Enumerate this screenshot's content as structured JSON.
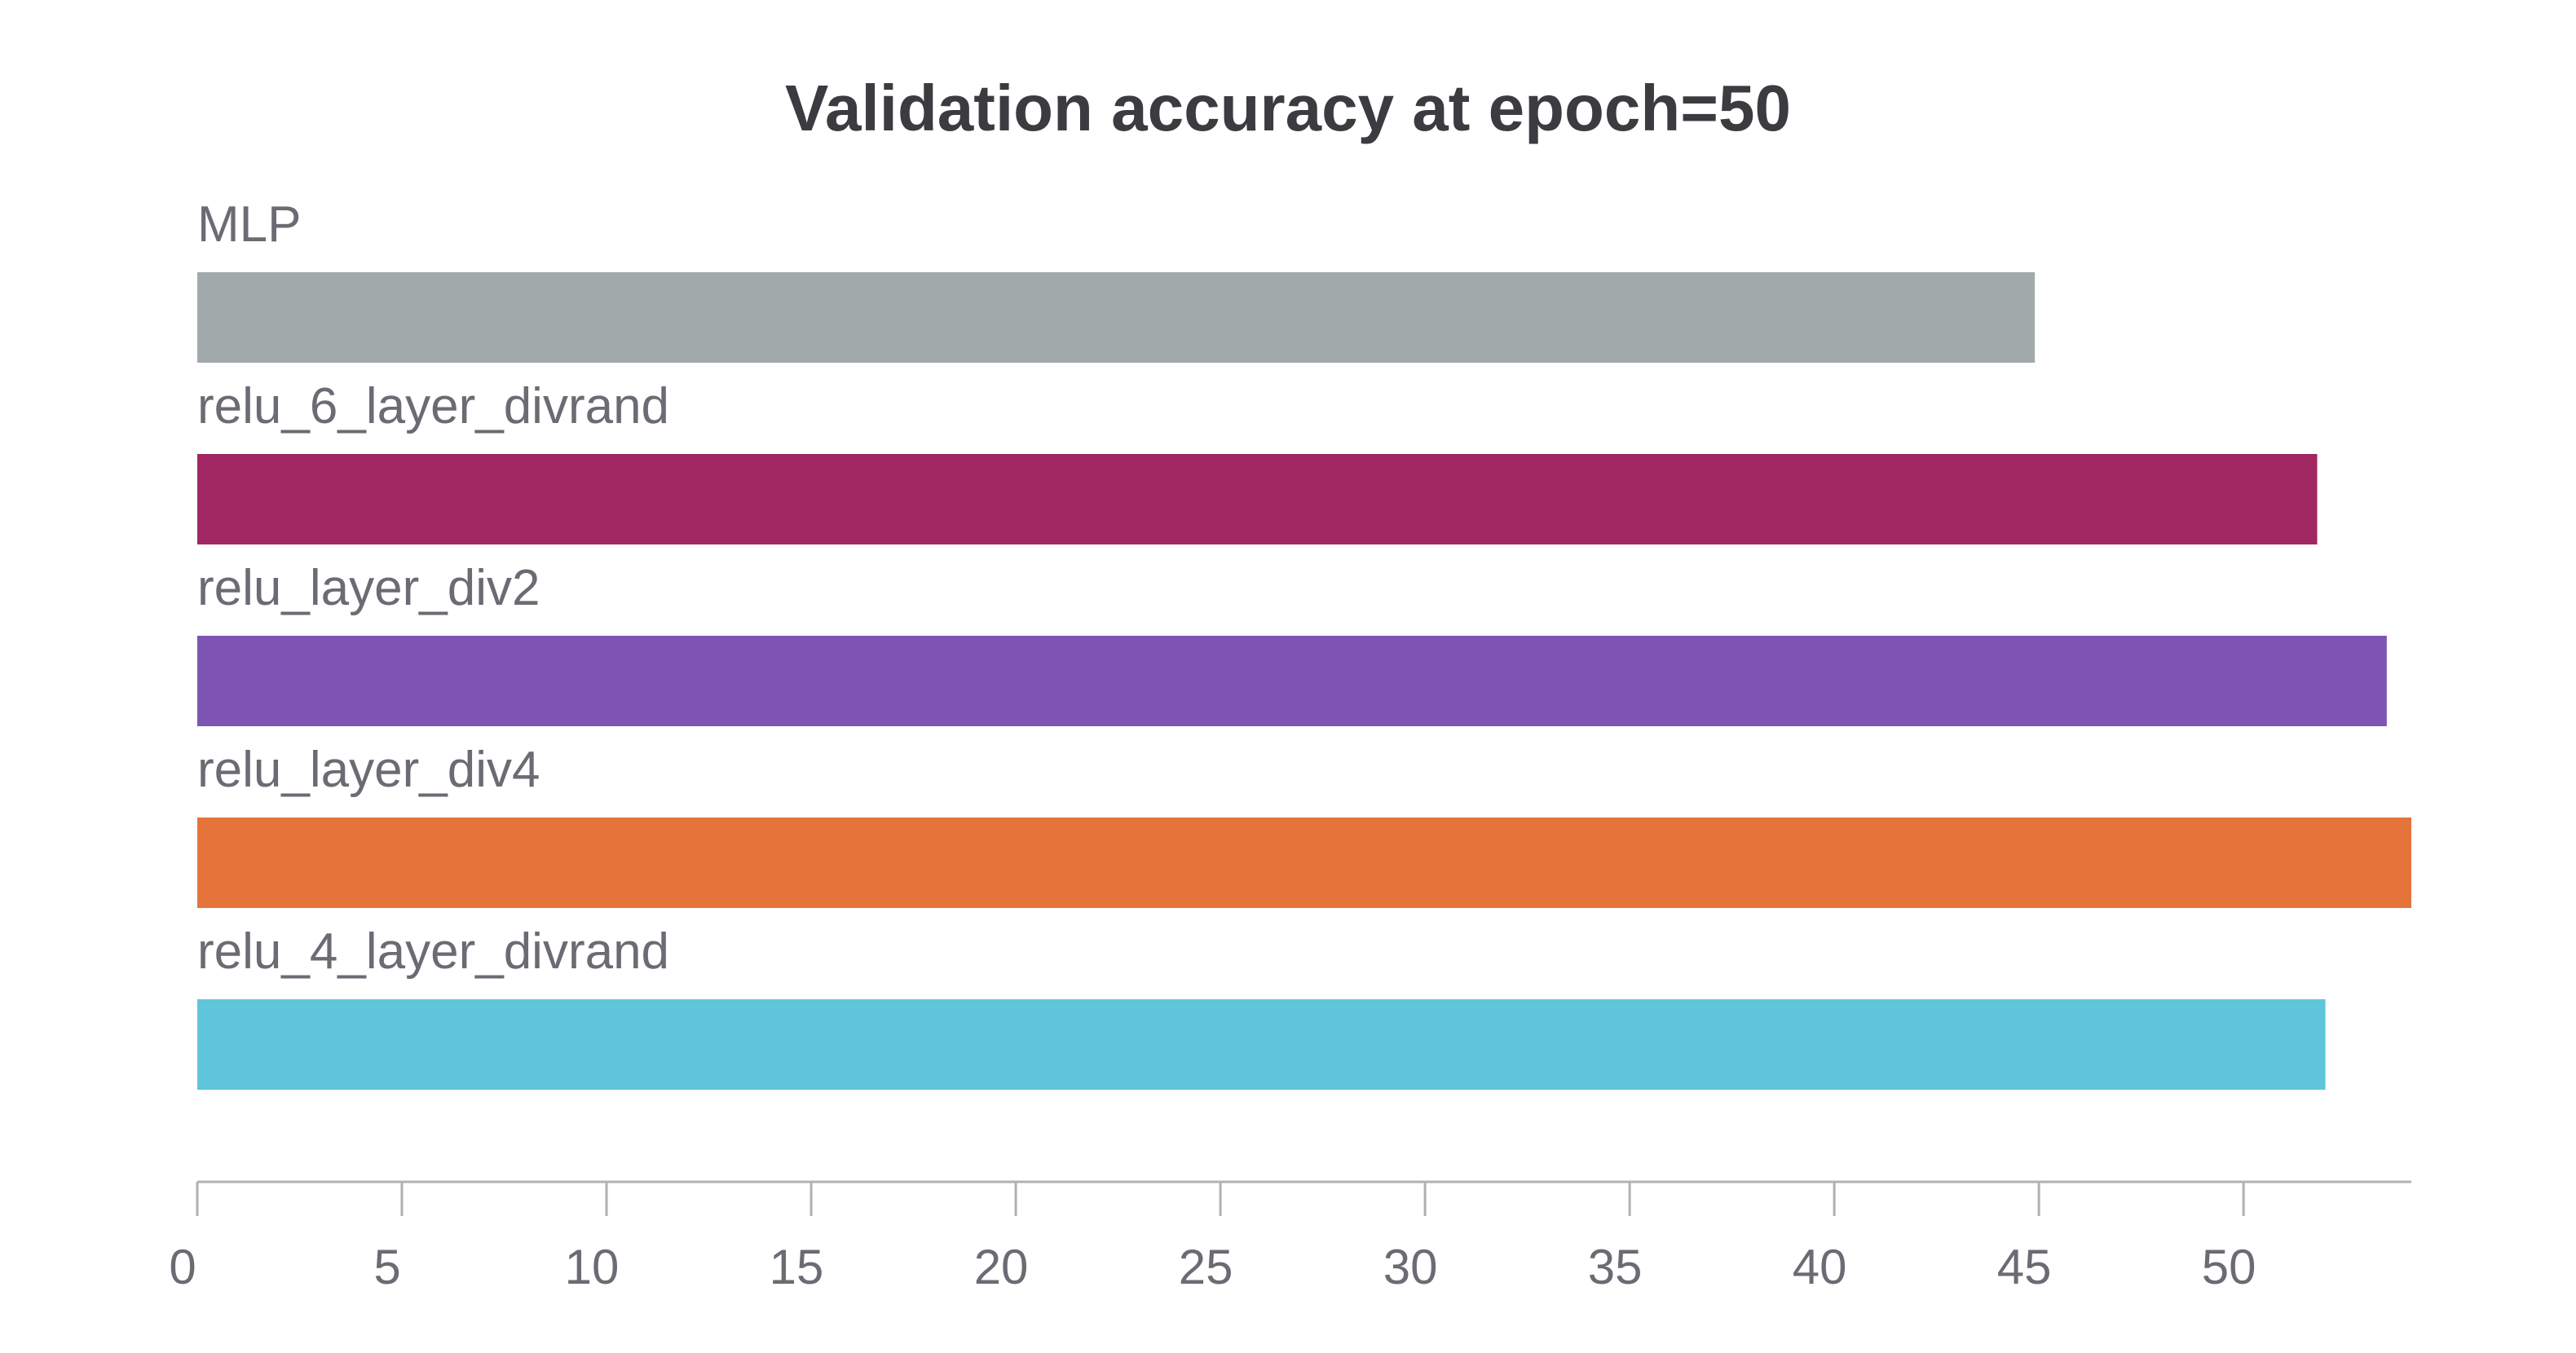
{
  "chart_data": {
    "type": "bar",
    "orientation": "horizontal",
    "title": "Validation accuracy at epoch=50",
    "xlabel": "",
    "ylabel": "",
    "categories": [
      "MLP",
      "relu_6_layer_divrand",
      "relu_layer_div2",
      "relu_layer_div4",
      "relu_4_layer_divrand"
    ],
    "values": [
      44.9,
      51.8,
      53.5,
      54.1,
      52.0
    ],
    "colors": [
      "#a2a9ab",
      "#a02762",
      "#7e55b3",
      "#e5743a",
      "#5ec5da"
    ],
    "xlim": [
      0,
      54.1
    ],
    "xticks": [
      0,
      5,
      10,
      15,
      20,
      25,
      30,
      35,
      40,
      45,
      50
    ],
    "grid": false,
    "legend": "none"
  }
}
